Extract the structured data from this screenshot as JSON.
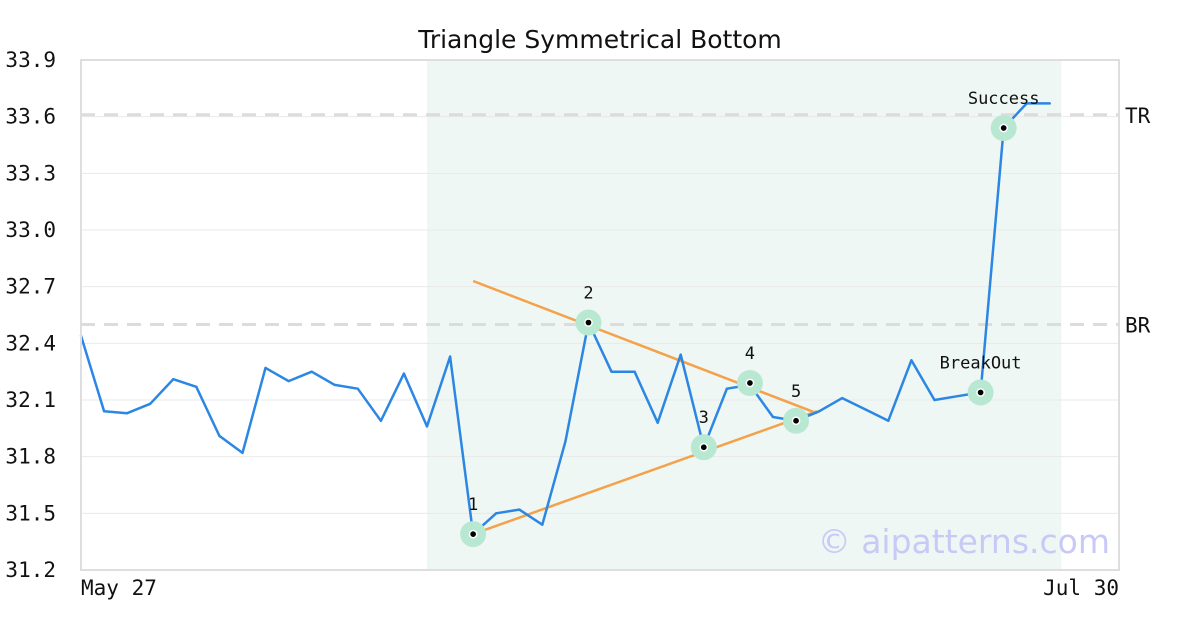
{
  "chart_data": {
    "type": "line",
    "title": "Triangle Symmetrical Bottom",
    "xlabel": "",
    "ylabel": "",
    "ylim": [
      31.2,
      33.9
    ],
    "y_ticks": [
      "31.2",
      "31.5",
      "31.8",
      "32.1",
      "32.4",
      "32.7",
      "33.0",
      "33.3",
      "33.6",
      "33.9"
    ],
    "x_tick_labels": [
      {
        "index": 0,
        "label": "May 27"
      },
      {
        "index": 45,
        "label": "Jul 30"
      }
    ],
    "grid": true,
    "series": [
      {
        "color": "#2b87e3",
        "values": [
          32.44,
          32.04,
          32.03,
          32.08,
          32.21,
          32.17,
          31.91,
          31.82,
          32.27,
          32.2,
          32.25,
          32.18,
          32.16,
          31.99,
          32.24,
          31.96,
          32.33,
          31.39,
          31.5,
          31.52,
          31.44,
          31.88,
          32.51,
          32.25,
          32.25,
          31.98,
          32.34,
          31.85,
          32.16,
          32.18,
          32.01,
          31.99,
          32.04,
          32.11,
          32.05,
          31.99,
          32.31,
          32.1,
          32.12,
          32.14,
          33.54,
          33.67,
          33.67
        ]
      }
    ],
    "pattern_region": {
      "from_index": 15,
      "to_index": 42.5,
      "color": "#eef7f3"
    },
    "levels": [
      {
        "label": "TR",
        "value": 33.61
      },
      {
        "label": "BR",
        "value": 32.5
      }
    ],
    "trendlines": [
      {
        "color": "#f5a04a",
        "from": {
          "x": 17,
          "y": 32.73
        },
        "to": {
          "x": 31.9,
          "y": 32.03
        }
      },
      {
        "color": "#f5a04a",
        "from": {
          "x": 17,
          "y": 31.39
        },
        "to": {
          "x": 31.9,
          "y": 32.04
        }
      }
    ],
    "markers": [
      {
        "label": "1",
        "x": 17,
        "y": 31.39,
        "label_pos": "above"
      },
      {
        "label": "2",
        "x": 22,
        "y": 32.51,
        "label_pos": "above"
      },
      {
        "label": "3",
        "x": 27,
        "y": 31.85,
        "label_pos": "above-close"
      },
      {
        "label": "4",
        "x": 29,
        "y": 32.19,
        "label_pos": "above"
      },
      {
        "label": "5",
        "x": 31,
        "y": 31.99,
        "label_pos": "above"
      },
      {
        "label": "BreakOut",
        "x": 39,
        "y": 32.14,
        "label_pos": "above"
      },
      {
        "label": "Success",
        "x": 40,
        "y": 33.54,
        "label_pos": "above"
      }
    ],
    "marker_colors": {
      "halo": "#b9e8d2",
      "dot": "#000000"
    },
    "watermark": "© aipatterns.com"
  }
}
